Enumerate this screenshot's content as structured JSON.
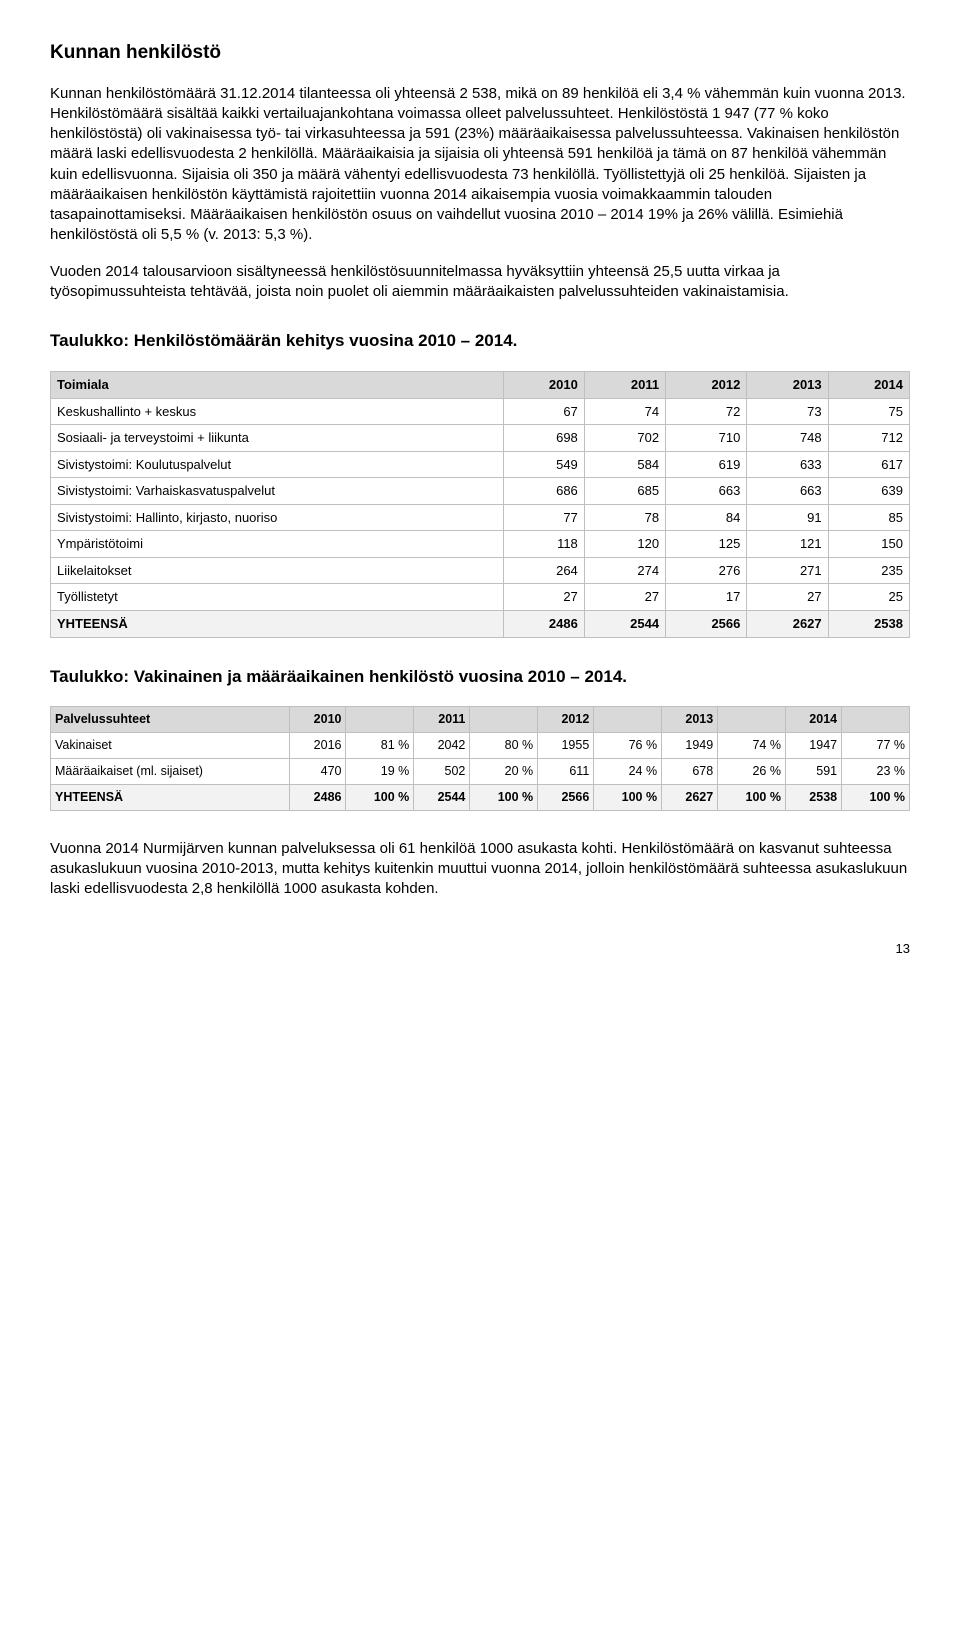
{
  "title": "Kunnan henkilöstö",
  "para1": "Kunnan henkilöstömäärä 31.12.2014 tilanteessa oli yhteensä 2 538, mikä on 89 henkilöä eli 3,4 % vähemmän kuin vuonna 2013. Henkilöstömäärä sisältää kaikki vertailuajankohtana voimassa olleet palvelussuhteet. Henkilöstöstä 1 947 (77 % koko henkilöstöstä) oli vakinaisessa työ- tai virkasuhteessa ja 591 (23%) määräaikaisessa palvelussuhteessa. Vakinaisen henkilöstön määrä laski edellisvuodesta 2 henkilöllä. Määräaikaisia ja sijaisia oli yhteensä 591 henkilöä ja tämä on 87 henkilöä vähemmän kuin edellisvuonna. Sijaisia oli 350 ja määrä vähentyi edellisvuodesta 73 henkilöllä. Työllistettyjä oli 25 henkilöä. Sijaisten ja määräaikaisen henkilöstön käyttämistä rajoitettiin vuonna 2014 aikaisempia vuosia voimakkaammin talouden tasapainottamiseksi. Määräaikaisen henkilöstön osuus on vaihdellut vuosina 2010 – 2014 19% ja 26% välillä. Esimiehiä henkilöstöstä oli 5,5 % (v. 2013: 5,3 %).",
  "para2": "Vuoden 2014 talousarvioon sisältyneessä henkilöstösuunnitelmassa hyväksyttiin yhteensä 25,5 uutta virkaa ja työsopimussuhteista tehtävää, joista noin puolet oli aiemmin määräaikaisten palvelussuhteiden vakinaistamisia.",
  "table1_title": "Taulukko: Henkilöstömäärän kehitys vuosina 2010 – 2014.",
  "table1": {
    "columns": [
      "Toimiala",
      "2010",
      "2011",
      "2012",
      "2013",
      "2014"
    ],
    "rows": [
      [
        "Keskushallinto + keskus",
        "67",
        "74",
        "72",
        "73",
        "75"
      ],
      [
        "Sosiaali- ja terveystoimi + liikunta",
        "698",
        "702",
        "710",
        "748",
        "712"
      ],
      [
        "Sivistystoimi: Koulutuspalvelut",
        "549",
        "584",
        "619",
        "633",
        "617"
      ],
      [
        "Sivistystoimi: Varhaiskasvatuspalvelut",
        "686",
        "685",
        "663",
        "663",
        "639"
      ],
      [
        "Sivistystoimi: Hallinto, kirjasto, nuoriso",
        "77",
        "78",
        "84",
        "91",
        "85"
      ],
      [
        "Ympäristötoimi",
        "118",
        "120",
        "125",
        "121",
        "150"
      ],
      [
        "Liikelaitokset",
        "264",
        "274",
        "276",
        "271",
        "235"
      ],
      [
        "Työllistetyt",
        "27",
        "27",
        "17",
        "27",
        "25"
      ]
    ],
    "total": [
      "YHTEENSÄ",
      "2486",
      "2544",
      "2566",
      "2627",
      "2538"
    ]
  },
  "table2_title": "Taulukko: Vakinainen ja määräaikainen henkilöstö vuosina 2010 – 2014.",
  "table2": {
    "columns": [
      "Palvelussuhteet",
      "2010",
      "",
      "2011",
      "",
      "2012",
      "",
      "2013",
      "",
      "2014",
      ""
    ],
    "rows": [
      [
        "Vakinaiset",
        "2016",
        "81 %",
        "2042",
        "80 %",
        "1955",
        "76 %",
        "1949",
        "74 %",
        "1947",
        "77 %"
      ],
      [
        "Määräaikaiset (ml. sijaiset)",
        "470",
        "19 %",
        "502",
        "20 %",
        "611",
        "24 %",
        "678",
        "26 %",
        "591",
        "23 %"
      ]
    ],
    "total": [
      "YHTEENSÄ",
      "2486",
      "100 %",
      "2544",
      "100 %",
      "2566",
      "100 %",
      "2627",
      "100 %",
      "2538",
      "100 %"
    ]
  },
  "para3": "Vuonna 2014 Nurmijärven kunnan palveluksessa oli 61 henkilöä 1000 asukasta kohti. Henkilöstömäärä on kasvanut suhteessa asukaslukuun vuosina 2010-2013, mutta kehitys kuitenkin muuttui vuonna 2014, jolloin henkilöstömäärä suhteessa asukaslukuun laski edellisvuodesta 2,8 henkilöllä 1000 asukasta kohden.",
  "page_number": "13"
}
